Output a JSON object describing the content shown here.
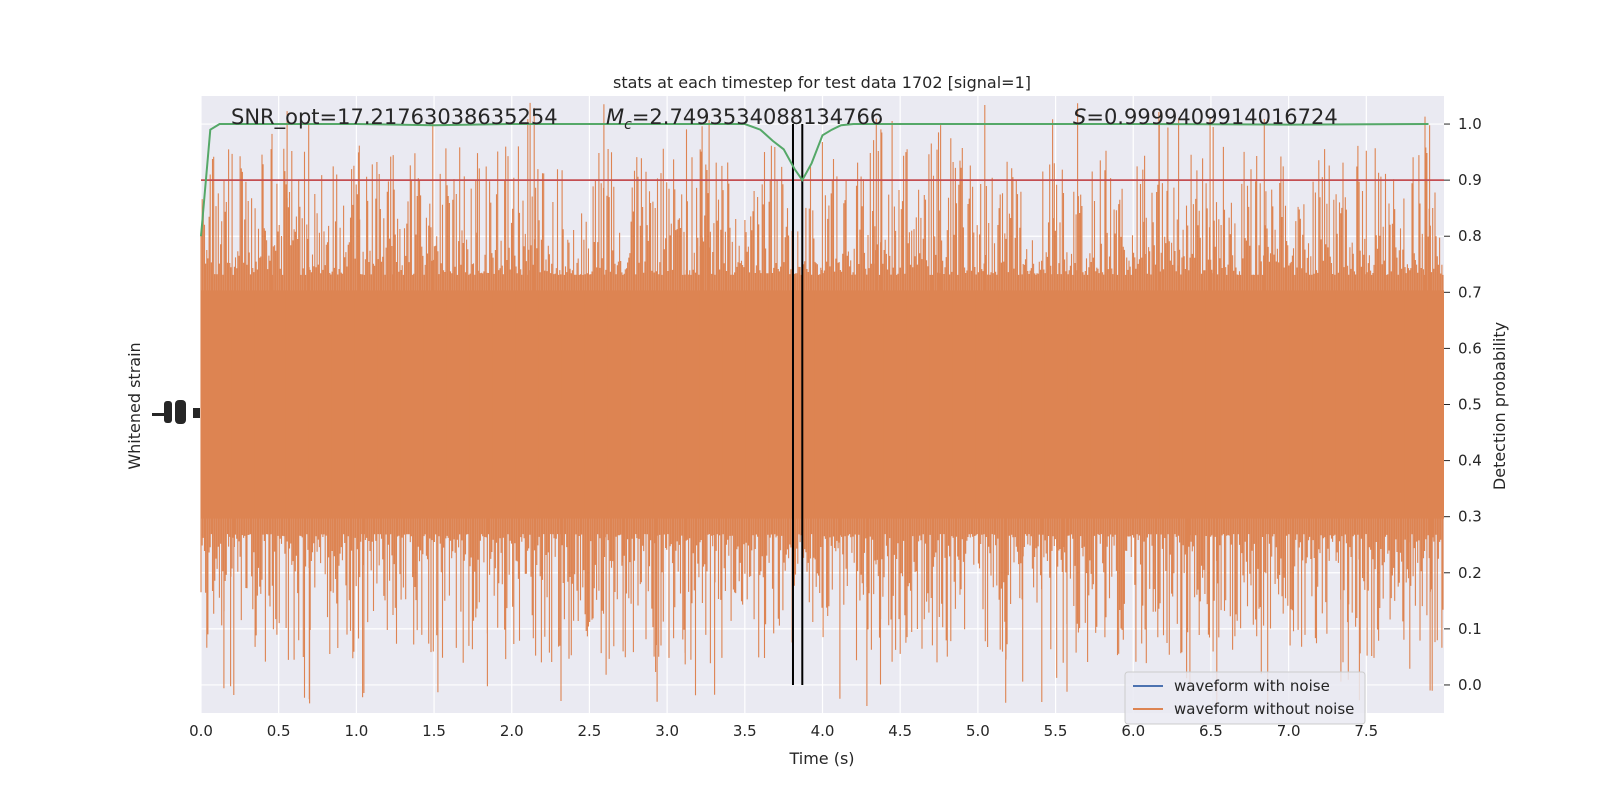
{
  "chart_data": {
    "type": "line",
    "title": "stats at each timestep for test data 1702 [signal=1]",
    "xlabel": "Time (s)",
    "ylabel_left": "Whitened strain",
    "ylabel_right": "Detection probability",
    "xlim": [
      0,
      8
    ],
    "ylim_right": [
      -0.05,
      1.05
    ],
    "x_ticks": [
      "0.0",
      "0.5",
      "1.0",
      "1.5",
      "2.0",
      "2.5",
      "3.0",
      "3.5",
      "4.0",
      "4.5",
      "5.0",
      "5.5",
      "6.0",
      "6.5",
      "7.0",
      "7.5"
    ],
    "y_ticks_right": [
      "0.0",
      "0.1",
      "0.2",
      "0.3",
      "0.4",
      "0.5",
      "0.6",
      "0.7",
      "0.8",
      "0.9",
      "1.0"
    ],
    "annotations": {
      "snr": "SNR_opt=17.21763038635254",
      "mc_label": "M",
      "mc_sub": "c",
      "mc_value": "=2.7493534088134766",
      "s_label": "S",
      "s_value": "=0.9999409914016724"
    },
    "threshold": 0.9,
    "vlines": [
      3.81,
      3.87
    ],
    "legend": {
      "position": "lower-right",
      "entries": [
        "waveform with noise",
        "waveform without noise"
      ]
    },
    "series": [
      {
        "name": "waveform with noise",
        "color": "#4c72b0",
        "values": []
      },
      {
        "name": "waveform without noise",
        "color": "#dd8452",
        "amplitude_range": [
          -1,
          1
        ]
      },
      {
        "color": "#55a868",
        "x": [
          0.0,
          0.06,
          0.12,
          0.2,
          0.5,
          1.0,
          1.5,
          2.0,
          2.5,
          3.0,
          3.4,
          3.5,
          3.6,
          3.68,
          3.75,
          3.82,
          3.87,
          3.93,
          4.0,
          4.06,
          4.12,
          4.2,
          4.5,
          5.0,
          6.0,
          7.0,
          7.9
        ],
        "y": [
          0.8,
          0.99,
          1.0,
          1.0,
          1.0,
          1.0,
          0.998,
          1.0,
          1.0,
          1.0,
          1.0,
          1.0,
          0.99,
          0.97,
          0.955,
          0.92,
          0.9,
          0.93,
          0.98,
          0.99,
          0.998,
          1.0,
          1.0,
          1.0,
          1.0,
          0.999,
          1.0
        ]
      }
    ],
    "colors": {
      "plot_bg": "#eaeaf2",
      "grid": "#ffffff",
      "threshold_line": "#c44e52",
      "vline": "#000000"
    }
  }
}
